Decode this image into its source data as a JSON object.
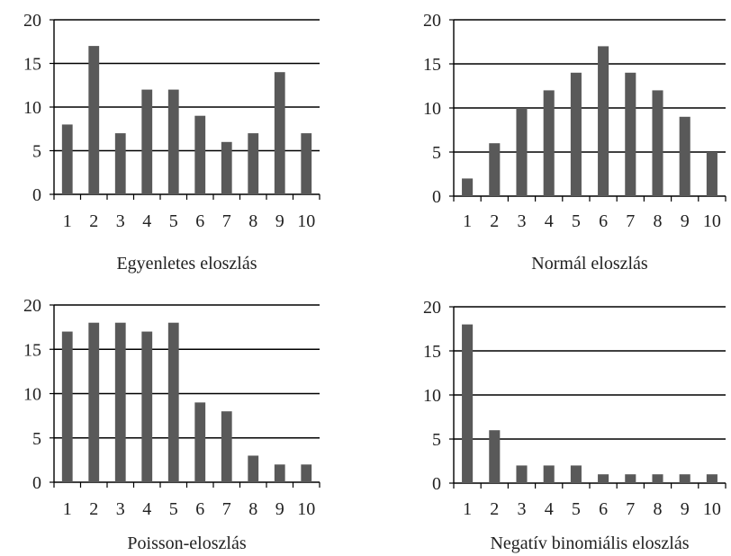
{
  "chart_data": [
    {
      "type": "bar",
      "title": "Egyenletes eloszlás",
      "categories": [
        "1",
        "2",
        "3",
        "4",
        "5",
        "6",
        "7",
        "8",
        "9",
        "10"
      ],
      "values": [
        8,
        17,
        7,
        12,
        12,
        9,
        6,
        7,
        14,
        7
      ],
      "yticks": [
        "0",
        "5",
        "10",
        "15",
        "20"
      ],
      "ylim": [
        0,
        20
      ],
      "grid": true,
      "bar_color": "#595959"
    },
    {
      "type": "bar",
      "title": "Normál eloszlás",
      "categories": [
        "1",
        "2",
        "3",
        "4",
        "5",
        "6",
        "7",
        "8",
        "9",
        "10"
      ],
      "values": [
        2,
        6,
        10,
        12,
        14,
        17,
        14,
        12,
        9,
        5
      ],
      "yticks": [
        "0",
        "5",
        "10",
        "15",
        "20"
      ],
      "ylim": [
        0,
        20
      ],
      "grid": true,
      "bar_color": "#595959"
    },
    {
      "type": "bar",
      "title": "Poisson-eloszlás",
      "categories": [
        "1",
        "2",
        "3",
        "4",
        "5",
        "6",
        "7",
        "8",
        "9",
        "10"
      ],
      "values": [
        17,
        18,
        18,
        17,
        18,
        9,
        8,
        3,
        2,
        2
      ],
      "yticks": [
        "0",
        "5",
        "10",
        "15",
        "20"
      ],
      "ylim": [
        0,
        20
      ],
      "grid": true,
      "bar_color": "#595959"
    },
    {
      "type": "bar",
      "title": "Negatív binomiális eloszlás",
      "categories": [
        "1",
        "2",
        "3",
        "4",
        "5",
        "6",
        "7",
        "8",
        "9",
        "10"
      ],
      "values": [
        18,
        6,
        2,
        2,
        2,
        1,
        1,
        1,
        1,
        1
      ],
      "yticks": [
        "0",
        "5",
        "10",
        "15",
        "20"
      ],
      "ylim": [
        0,
        20
      ],
      "grid": true,
      "bar_color": "#595959"
    }
  ]
}
